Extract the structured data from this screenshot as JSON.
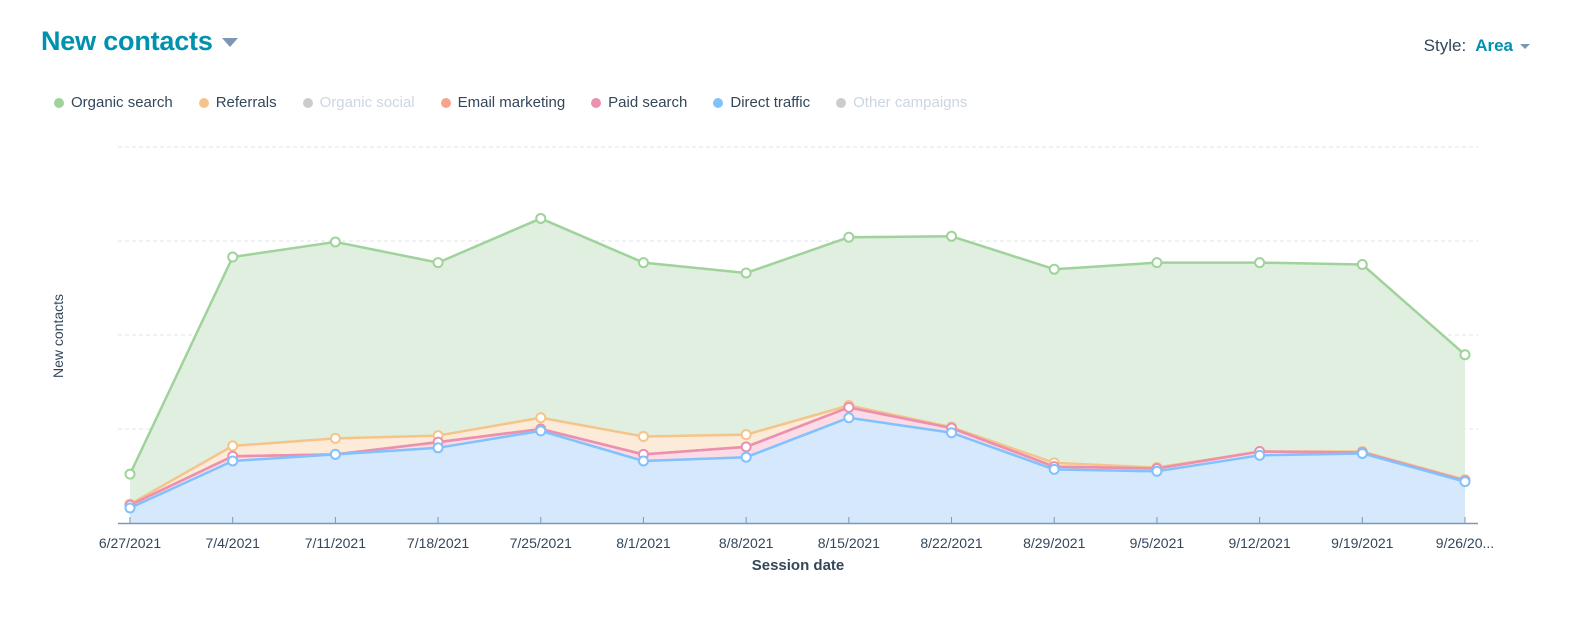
{
  "header": {
    "title": "New contacts",
    "style_label": "Style:",
    "style_value": "Area"
  },
  "legend": [
    {
      "name": "Organic search",
      "color": "#9fd39b",
      "active": true
    },
    {
      "name": "Referrals",
      "color": "#f5c48a",
      "active": true
    },
    {
      "name": "Organic social",
      "color": "#cccccc",
      "active": false
    },
    {
      "name": "Email marketing",
      "color": "#f8a48d",
      "active": true
    },
    {
      "name": "Paid search",
      "color": "#ea90b1",
      "active": true
    },
    {
      "name": "Direct traffic",
      "color": "#81c1fd",
      "active": true
    },
    {
      "name": "Other campaigns",
      "color": "#cccccc",
      "active": false
    }
  ],
  "chart_data": {
    "type": "area",
    "stacked": true,
    "title": "New contacts",
    "xlabel": "Session date",
    "ylabel": "New contacts",
    "ylim": [
      0,
      40
    ],
    "y_gridlines": [
      10,
      20,
      30,
      40
    ],
    "y_tick_labels_visible": false,
    "grid": true,
    "legend_position": "top-left",
    "categories": [
      "6/27/2021",
      "7/4/2021",
      "7/11/2021",
      "7/18/2021",
      "7/25/2021",
      "8/1/2021",
      "8/8/2021",
      "8/15/2021",
      "8/22/2021",
      "8/29/2021",
      "9/5/2021",
      "9/12/2021",
      "9/19/2021",
      "9/26/20..."
    ],
    "series": [
      {
        "name": "Direct traffic",
        "color": "#81c1fd",
        "fill": "#d6e8fc",
        "values": [
          1.6,
          6.6,
          7.3,
          8.0,
          9.8,
          6.6,
          7.0,
          11.2,
          9.6,
          5.7,
          5.5,
          7.2,
          7.4,
          4.4
        ]
      },
      {
        "name": "Paid search",
        "color": "#ea90b1",
        "fill": "#fadbe6",
        "values": [
          0.3,
          0.5,
          0.0,
          0.6,
          0.2,
          0.7,
          1.1,
          1.1,
          0.5,
          0.3,
          0.3,
          0.4,
          0.1,
          0.1
        ]
      },
      {
        "name": "Email marketing",
        "color": "#f8a48d",
        "fill": "#fde2da",
        "values": [
          0,
          0,
          0,
          0,
          0,
          0,
          0,
          0,
          0,
          0,
          0,
          0,
          0,
          0
        ]
      },
      {
        "name": "Referrals",
        "color": "#f5c48a",
        "fill": "#fbebd8",
        "values": [
          0.1,
          1.1,
          1.7,
          0.7,
          1.2,
          1.9,
          1.3,
          0.2,
          0.1,
          0.4,
          0.1,
          0.0,
          0.1,
          0.1
        ]
      },
      {
        "name": "Organic search",
        "color": "#9fd39b",
        "fill": "#e0efdf",
        "values": [
          3.2,
          20.1,
          20.9,
          18.4,
          21.2,
          18.5,
          17.2,
          17.9,
          20.3,
          20.6,
          21.8,
          20.1,
          19.9,
          13.3
        ]
      }
    ]
  }
}
